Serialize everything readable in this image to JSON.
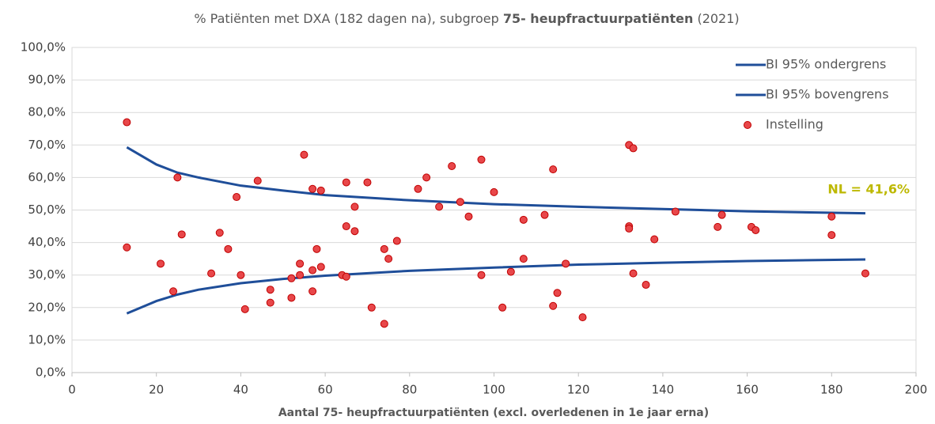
{
  "chart_data": {
    "type": "scatter",
    "title": [
      {
        "text": "% Patiënten met DXA (182 dagen na), subgroep ",
        "bold": false
      },
      {
        "text": "75- heupfractuurpatiënten",
        "bold": true
      },
      {
        "text": " (2021)",
        "bold": false
      }
    ],
    "xlabel": "Aantal 75- heupfractuurpatiënten (excl. overledenen in 1e jaar erna)",
    "annotation": "NL = 41,6%",
    "annotation_color": "#bdb800",
    "xlim": [
      0,
      200
    ],
    "xticks": [
      0,
      20,
      40,
      60,
      80,
      100,
      120,
      140,
      160,
      180,
      200
    ],
    "ylim": [
      0,
      100
    ],
    "yticks": [
      {
        "value": 0,
        "label": "0,0%"
      },
      {
        "value": 10,
        "label": "10,0%"
      },
      {
        "value": 20,
        "label": "20,0%"
      },
      {
        "value": 30,
        "label": "30,0%"
      },
      {
        "value": 40,
        "label": "40,0%"
      },
      {
        "value": 50,
        "label": "50,0%"
      },
      {
        "value": 60,
        "label": "60,0%"
      },
      {
        "value": 70,
        "label": "70,0%"
      },
      {
        "value": 80,
        "label": "80,0%"
      },
      {
        "value": 90,
        "label": "90,0%"
      },
      {
        "value": 100,
        "label": "100,0%"
      }
    ],
    "grid": true,
    "legend": "top-right",
    "series": [
      {
        "name": "BI 95% ondergrens",
        "type": "line",
        "color": "#1f4e99",
        "x": [
          13,
          20,
          25,
          30,
          40,
          50,
          60,
          80,
          100,
          120,
          140,
          160,
          188
        ],
        "values": [
          18.2,
          22,
          24,
          25.5,
          27.5,
          28.8,
          29.8,
          31.3,
          32.3,
          33.2,
          33.8,
          34.3,
          34.8
        ]
      },
      {
        "name": "BI 95% bovengrens",
        "type": "line",
        "color": "#1f4e99",
        "x": [
          13,
          20,
          25,
          30,
          40,
          50,
          60,
          80,
          100,
          120,
          140,
          160,
          188
        ],
        "values": [
          69.3,
          64,
          61.5,
          60,
          57.5,
          56,
          54.6,
          53,
          51.8,
          51,
          50.3,
          49.6,
          49
        ]
      },
      {
        "name": "Instelling",
        "type": "scatter",
        "color": "#e8474a",
        "edge_color": "#c00000",
        "x": [
          13,
          13,
          21,
          25,
          24,
          26,
          33,
          35,
          37,
          39,
          40,
          41,
          44,
          47,
          47,
          52,
          52,
          54,
          54,
          55,
          57,
          57,
          57,
          58,
          59,
          59,
          64,
          65,
          65,
          65,
          67,
          67,
          70,
          71,
          74,
          74,
          75,
          77,
          82,
          84,
          87,
          90,
          92,
          94,
          97,
          97,
          100,
          104,
          102,
          107,
          107,
          112,
          114,
          114,
          115,
          117,
          121,
          132,
          132,
          132,
          133,
          133,
          136,
          138,
          143,
          153,
          154,
          161,
          162,
          180,
          180,
          188
        ],
        "values": [
          77,
          38.5,
          33.5,
          60,
          25,
          42.5,
          30.5,
          43,
          38,
          54,
          30,
          19.5,
          59,
          25.5,
          21.5,
          29,
          23,
          33.5,
          30,
          67,
          56.5,
          31.5,
          25,
          38,
          56,
          32.5,
          30,
          58.5,
          45,
          29.5,
          51,
          43.5,
          58.5,
          20,
          38,
          15,
          35,
          40.5,
          56.5,
          60,
          51,
          63.5,
          52.5,
          48,
          65.5,
          30,
          55.5,
          31,
          20,
          47,
          35,
          48.5,
          62.5,
          20.5,
          24.5,
          33.5,
          17,
          70,
          45,
          44.3,
          69,
          30.5,
          27,
          41,
          49.5,
          44.8,
          48.5,
          44.8,
          43.8,
          48,
          42.3,
          30.5
        ]
      }
    ]
  }
}
